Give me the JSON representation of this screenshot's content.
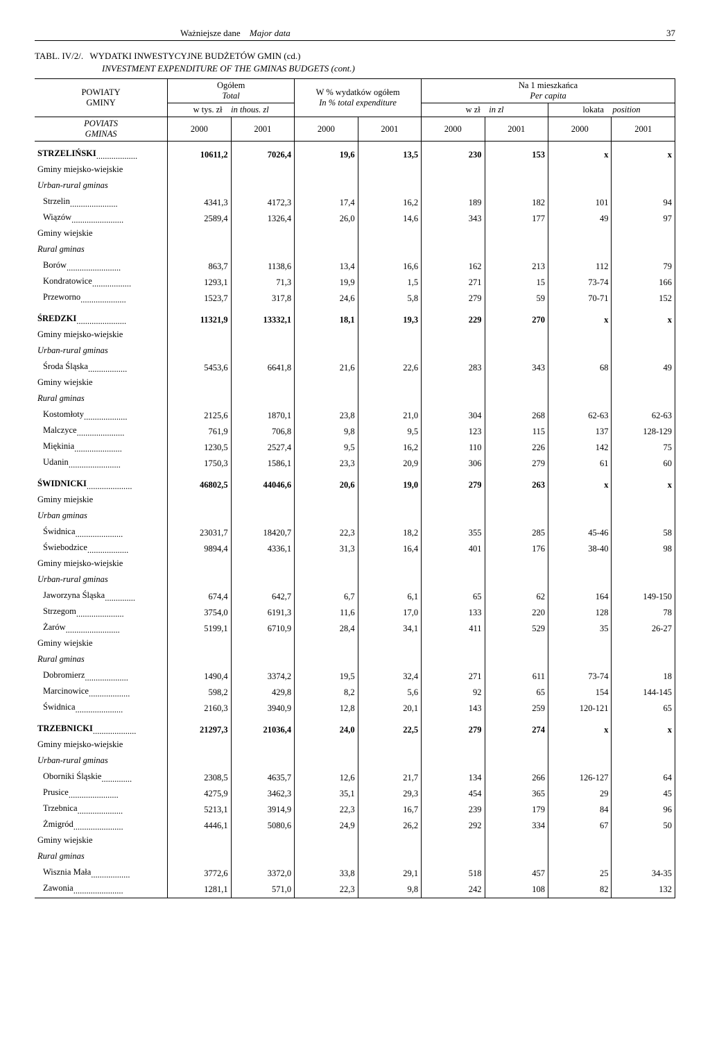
{
  "page": {
    "header_left": "Ważniejsze dane",
    "header_italic": "Major data",
    "page_number": "37",
    "table_no": "TABL. IV/2/.",
    "title": "WYDATKI INWESTYCYJNE BUDŻETÓW GMIN (cd.)",
    "subtitle": "INVESTMENT EXPENDITURE OF THE GMINAS BUDGETS (cont.)"
  },
  "head": {
    "col_group": "POWIATY\nGMINY",
    "col_group_i1": "POVIATS",
    "col_group_i2": "GMINAS",
    "ogolem": "Ogółem",
    "ogolem_i": "Total",
    "wthousz1": "w tys. zł",
    "wthousz2": "in thous. zl",
    "pct1": "W % wydatków ogółem",
    "pct2": "In % total expenditure",
    "percap1": "Na 1 mieszkańca",
    "percap2": "Per capita",
    "wzl": "w zł",
    "inzl": "in zl",
    "lokata": "lokata",
    "position": "position",
    "y2000": "2000",
    "y2001": "2001"
  },
  "rows": [
    {
      "label": "STRZELIŃSKI",
      "bold": true,
      "dots": true,
      "top": true,
      "v": [
        "10611,2",
        "7026,4",
        "19,6",
        "13,5",
        "230",
        "153",
        "x",
        "x"
      ]
    },
    {
      "label": "Gminy miejsko-wiejskie",
      "v": [
        "",
        "",
        "",
        "",
        "",
        "",
        "",
        ""
      ]
    },
    {
      "label": "Urban-rural gminas",
      "italic": true,
      "v": [
        "",
        "",
        "",
        "",
        "",
        "",
        "",
        ""
      ]
    },
    {
      "label": "Strzelin",
      "indent": true,
      "dots": true,
      "v": [
        "4341,3",
        "4172,3",
        "17,4",
        "16,2",
        "189",
        "182",
        "101",
        "94"
      ]
    },
    {
      "label": "Wiązów",
      "indent": true,
      "dots": true,
      "v": [
        "2589,4",
        "1326,4",
        "26,0",
        "14,6",
        "343",
        "177",
        "49",
        "97"
      ]
    },
    {
      "label": "Gminy wiejskie",
      "v": [
        "",
        "",
        "",
        "",
        "",
        "",
        "",
        ""
      ]
    },
    {
      "label": "Rural gminas",
      "italic": true,
      "v": [
        "",
        "",
        "",
        "",
        "",
        "",
        "",
        ""
      ]
    },
    {
      "label": "Borów",
      "indent": true,
      "dots": true,
      "v": [
        "863,7",
        "1138,6",
        "13,4",
        "16,6",
        "162",
        "213",
        "112",
        "79"
      ]
    },
    {
      "label": "Kondratowice",
      "indent": true,
      "dots": true,
      "v": [
        "1293,1",
        "71,3",
        "19,9",
        "1,5",
        "271",
        "15",
        "73-74",
        "166"
      ]
    },
    {
      "label": "Przeworno",
      "indent": true,
      "dots": true,
      "v": [
        "1523,7",
        "317,8",
        "24,6",
        "5,8",
        "279",
        "59",
        "70-71",
        "152"
      ]
    },
    {
      "label": "ŚREDZKI",
      "bold": true,
      "dots": true,
      "top": true,
      "v": [
        "11321,9",
        "13332,1",
        "18,1",
        "19,3",
        "229",
        "270",
        "x",
        "x"
      ]
    },
    {
      "label": "Gminy miejsko-wiejskie",
      "v": [
        "",
        "",
        "",
        "",
        "",
        "",
        "",
        ""
      ]
    },
    {
      "label": "Urban-rural gminas",
      "italic": true,
      "v": [
        "",
        "",
        "",
        "",
        "",
        "",
        "",
        ""
      ]
    },
    {
      "label": "Środa Śląska",
      "indent": true,
      "dots": true,
      "v": [
        "5453,6",
        "6641,8",
        "21,6",
        "22,6",
        "283",
        "343",
        "68",
        "49"
      ]
    },
    {
      "label": "Gminy wiejskie",
      "v": [
        "",
        "",
        "",
        "",
        "",
        "",
        "",
        ""
      ]
    },
    {
      "label": "Rural gminas",
      "italic": true,
      "v": [
        "",
        "",
        "",
        "",
        "",
        "",
        "",
        ""
      ]
    },
    {
      "label": "Kostomłoty",
      "indent": true,
      "dots": true,
      "v": [
        "2125,6",
        "1870,1",
        "23,8",
        "21,0",
        "304",
        "268",
        "62-63",
        "62-63"
      ]
    },
    {
      "label": "Malczyce",
      "indent": true,
      "dots": true,
      "v": [
        "761,9",
        "706,8",
        "9,8",
        "9,5",
        "123",
        "115",
        "137",
        "128-129"
      ]
    },
    {
      "label": "Miękinia",
      "indent": true,
      "dots": true,
      "v": [
        "1230,5",
        "2527,4",
        "9,5",
        "16,2",
        "110",
        "226",
        "142",
        "75"
      ]
    },
    {
      "label": "Udanin",
      "indent": true,
      "dots": true,
      "v": [
        "1750,3",
        "1586,1",
        "23,3",
        "20,9",
        "306",
        "279",
        "61",
        "60"
      ]
    },
    {
      "label": "ŚWIDNICKI",
      "bold": true,
      "dots": true,
      "top": true,
      "v": [
        "46802,5",
        "44046,6",
        "20,6",
        "19,0",
        "279",
        "263",
        "x",
        "x"
      ]
    },
    {
      "label": "Gminy miejskie",
      "v": [
        "",
        "",
        "",
        "",
        "",
        "",
        "",
        ""
      ]
    },
    {
      "label": "Urban gminas",
      "italic": true,
      "v": [
        "",
        "",
        "",
        "",
        "",
        "",
        "",
        ""
      ]
    },
    {
      "label": "Świdnica",
      "indent": true,
      "dots": true,
      "v": [
        "23031,7",
        "18420,7",
        "22,3",
        "18,2",
        "355",
        "285",
        "45-46",
        "58"
      ]
    },
    {
      "label": "Świebodzice",
      "indent": true,
      "dots": true,
      "v": [
        "9894,4",
        "4336,1",
        "31,3",
        "16,4",
        "401",
        "176",
        "38-40",
        "98"
      ]
    },
    {
      "label": "Gminy miejsko-wiejskie",
      "v": [
        "",
        "",
        "",
        "",
        "",
        "",
        "",
        ""
      ]
    },
    {
      "label": "Urban-rural gminas",
      "italic": true,
      "v": [
        "",
        "",
        "",
        "",
        "",
        "",
        "",
        ""
      ]
    },
    {
      "label": "Jaworzyna Śląska",
      "indent": true,
      "dots": true,
      "v": [
        "674,4",
        "642,7",
        "6,7",
        "6,1",
        "65",
        "62",
        "164",
        "149-150"
      ]
    },
    {
      "label": "Strzegom",
      "indent": true,
      "dots": true,
      "v": [
        "3754,0",
        "6191,3",
        "11,6",
        "17,0",
        "133",
        "220",
        "128",
        "78"
      ]
    },
    {
      "label": "Żarów",
      "indent": true,
      "dots": true,
      "v": [
        "5199,1",
        "6710,9",
        "28,4",
        "34,1",
        "411",
        "529",
        "35",
        "26-27"
      ]
    },
    {
      "label": "Gminy wiejskie",
      "v": [
        "",
        "",
        "",
        "",
        "",
        "",
        "",
        ""
      ]
    },
    {
      "label": "Rural gminas",
      "italic": true,
      "v": [
        "",
        "",
        "",
        "",
        "",
        "",
        "",
        ""
      ]
    },
    {
      "label": "Dobromierz",
      "indent": true,
      "dots": true,
      "v": [
        "1490,4",
        "3374,2",
        "19,5",
        "32,4",
        "271",
        "611",
        "73-74",
        "18"
      ]
    },
    {
      "label": "Marcinowice",
      "indent": true,
      "dots": true,
      "v": [
        "598,2",
        "429,8",
        "8,2",
        "5,6",
        "92",
        "65",
        "154",
        "144-145"
      ]
    },
    {
      "label": "Świdnica",
      "indent": true,
      "dots": true,
      "v": [
        "2160,3",
        "3940,9",
        "12,8",
        "20,1",
        "143",
        "259",
        "120-121",
        "65"
      ]
    },
    {
      "label": "TRZEBNICKI",
      "bold": true,
      "dots": true,
      "top": true,
      "v": [
        "21297,3",
        "21036,4",
        "24,0",
        "22,5",
        "279",
        "274",
        "x",
        "x"
      ]
    },
    {
      "label": "Gminy miejsko-wiejskie",
      "v": [
        "",
        "",
        "",
        "",
        "",
        "",
        "",
        ""
      ]
    },
    {
      "label": "Urban-rural gminas",
      "italic": true,
      "v": [
        "",
        "",
        "",
        "",
        "",
        "",
        "",
        ""
      ]
    },
    {
      "label": "Oborniki Śląskie",
      "indent": true,
      "dots": true,
      "v": [
        "2308,5",
        "4635,7",
        "12,6",
        "21,7",
        "134",
        "266",
        "126-127",
        "64"
      ]
    },
    {
      "label": "Prusice",
      "indent": true,
      "dots": true,
      "v": [
        "4275,9",
        "3462,3",
        "35,1",
        "29,3",
        "454",
        "365",
        "29",
        "45"
      ]
    },
    {
      "label": "Trzebnica",
      "indent": true,
      "dots": true,
      "v": [
        "5213,1",
        "3914,9",
        "22,3",
        "16,7",
        "239",
        "179",
        "84",
        "96"
      ]
    },
    {
      "label": "Żmigród",
      "indent": true,
      "dots": true,
      "v": [
        "4446,1",
        "5080,6",
        "24,9",
        "26,2",
        "292",
        "334",
        "67",
        "50"
      ]
    },
    {
      "label": "Gminy wiejskie",
      "v": [
        "",
        "",
        "",
        "",
        "",
        "",
        "",
        ""
      ]
    },
    {
      "label": "Rural gminas",
      "italic": true,
      "v": [
        "",
        "",
        "",
        "",
        "",
        "",
        "",
        ""
      ]
    },
    {
      "label": "Wisznia Mała",
      "indent": true,
      "dots": true,
      "v": [
        "3772,6",
        "3372,0",
        "33,8",
        "29,1",
        "518",
        "457",
        "25",
        "34-35"
      ]
    },
    {
      "label": "Zawonia",
      "indent": true,
      "dots": true,
      "last": true,
      "v": [
        "1281,1",
        "571,0",
        "22,3",
        "9,8",
        "242",
        "108",
        "82",
        "132"
      ]
    }
  ]
}
